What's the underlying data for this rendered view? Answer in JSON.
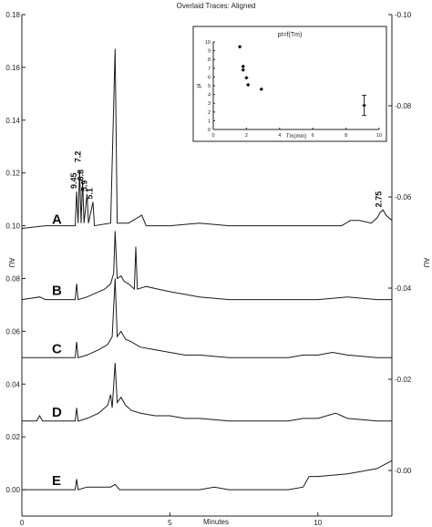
{
  "chart_data": {
    "type": "line",
    "title": "Overlaid Traces: Aligned",
    "xlabel": "Minutes",
    "ylabel": "AU",
    "xlim": [
      0,
      12.5
    ],
    "ylim": [
      -0.01,
      0.18
    ],
    "right_ylim": [
      -0.01,
      0.1
    ],
    "x_ticks": [
      0,
      5,
      10
    ],
    "left_y_ticks": [
      "0.00",
      "0.02",
      "0.04",
      "0.06",
      "0.08",
      "0.10",
      "0.12",
      "0.14",
      "0.16",
      "0.18"
    ],
    "right_y_ticks": [
      "0.00",
      "0.02",
      "0.04",
      "0.06",
      "0.08",
      "0.10"
    ],
    "series": [
      {
        "name": "A",
        "baseline": 0.099,
        "points": [
          [
            0,
            0.099
          ],
          [
            0.8,
            0.1
          ],
          [
            1.8,
            0.1
          ],
          [
            1.85,
            0.113
          ],
          [
            1.9,
            0.101
          ],
          [
            1.95,
            0.121
          ],
          [
            2.0,
            0.101
          ],
          [
            2.05,
            0.117
          ],
          [
            2.1,
            0.101
          ],
          [
            2.2,
            0.112
          ],
          [
            2.25,
            0.101
          ],
          [
            2.4,
            0.109
          ],
          [
            2.45,
            0.1
          ],
          [
            3.0,
            0.101
          ],
          [
            3.15,
            0.167
          ],
          [
            3.22,
            0.101
          ],
          [
            3.6,
            0.101
          ],
          [
            3.9,
            0.103
          ],
          [
            4.05,
            0.104
          ],
          [
            4.2,
            0.1
          ],
          [
            5.0,
            0.1
          ],
          [
            6.0,
            0.101
          ],
          [
            7.0,
            0.1
          ],
          [
            9.0,
            0.1
          ],
          [
            10.0,
            0.1
          ],
          [
            10.8,
            0.1
          ],
          [
            11.1,
            0.102
          ],
          [
            11.4,
            0.102
          ],
          [
            11.8,
            0.101
          ],
          [
            12.0,
            0.103
          ],
          [
            12.1,
            0.105
          ],
          [
            12.2,
            0.106
          ],
          [
            12.3,
            0.104
          ],
          [
            12.5,
            0.102
          ]
        ]
      },
      {
        "name": "B",
        "baseline": 0.072,
        "points": [
          [
            0,
            0.072
          ],
          [
            0.6,
            0.073
          ],
          [
            0.8,
            0.072
          ],
          [
            1.8,
            0.072
          ],
          [
            1.85,
            0.078
          ],
          [
            1.9,
            0.072
          ],
          [
            2.2,
            0.073
          ],
          [
            2.6,
            0.075
          ],
          [
            2.8,
            0.076
          ],
          [
            3.0,
            0.078
          ],
          [
            3.1,
            0.082
          ],
          [
            3.15,
            0.098
          ],
          [
            3.22,
            0.08
          ],
          [
            3.35,
            0.081
          ],
          [
            3.45,
            0.079
          ],
          [
            3.6,
            0.078
          ],
          [
            3.8,
            0.076
          ],
          [
            3.85,
            0.092
          ],
          [
            3.9,
            0.076
          ],
          [
            4.2,
            0.077
          ],
          [
            4.6,
            0.076
          ],
          [
            5.0,
            0.075
          ],
          [
            5.5,
            0.074
          ],
          [
            6.0,
            0.073
          ],
          [
            7.0,
            0.072
          ],
          [
            8.0,
            0.072
          ],
          [
            9.0,
            0.072
          ],
          [
            10.0,
            0.072
          ],
          [
            11.0,
            0.073
          ],
          [
            12.0,
            0.072
          ],
          [
            12.5,
            0.072
          ]
        ]
      },
      {
        "name": "C",
        "baseline": 0.05,
        "points": [
          [
            0,
            0.05
          ],
          [
            1.8,
            0.05
          ],
          [
            1.85,
            0.056
          ],
          [
            1.9,
            0.05
          ],
          [
            2.2,
            0.051
          ],
          [
            2.6,
            0.053
          ],
          [
            2.9,
            0.055
          ],
          [
            3.05,
            0.058
          ],
          [
            3.15,
            0.08
          ],
          [
            3.22,
            0.058
          ],
          [
            3.35,
            0.06
          ],
          [
            3.5,
            0.057
          ],
          [
            3.7,
            0.056
          ],
          [
            4.0,
            0.054
          ],
          [
            4.5,
            0.053
          ],
          [
            5.0,
            0.052
          ],
          [
            5.5,
            0.051
          ],
          [
            6.0,
            0.051
          ],
          [
            7.0,
            0.05
          ],
          [
            8.0,
            0.05
          ],
          [
            9.0,
            0.05
          ],
          [
            9.5,
            0.051
          ],
          [
            10.0,
            0.051
          ],
          [
            10.5,
            0.052
          ],
          [
            11.0,
            0.051
          ],
          [
            12.0,
            0.05
          ],
          [
            12.5,
            0.05
          ]
        ]
      },
      {
        "name": "D",
        "baseline": 0.026,
        "points": [
          [
            0,
            0.026
          ],
          [
            0.5,
            0.026
          ],
          [
            0.6,
            0.028
          ],
          [
            0.7,
            0.026
          ],
          [
            1.8,
            0.026
          ],
          [
            1.85,
            0.031
          ],
          [
            1.9,
            0.026
          ],
          [
            2.2,
            0.027
          ],
          [
            2.6,
            0.029
          ],
          [
            2.9,
            0.032
          ],
          [
            3.0,
            0.036
          ],
          [
            3.05,
            0.031
          ],
          [
            3.15,
            0.048
          ],
          [
            3.22,
            0.033
          ],
          [
            3.35,
            0.035
          ],
          [
            3.5,
            0.032
          ],
          [
            3.7,
            0.03
          ],
          [
            4.0,
            0.029
          ],
          [
            4.5,
            0.028
          ],
          [
            5.0,
            0.028
          ],
          [
            5.5,
            0.027
          ],
          [
            6.0,
            0.027
          ],
          [
            7.0,
            0.026
          ],
          [
            8.0,
            0.026
          ],
          [
            9.0,
            0.026
          ],
          [
            9.5,
            0.027
          ],
          [
            10.0,
            0.027
          ],
          [
            10.6,
            0.029
          ],
          [
            10.8,
            0.028
          ],
          [
            11.0,
            0.027
          ],
          [
            12.0,
            0.026
          ],
          [
            12.5,
            0.026
          ]
        ]
      },
      {
        "name": "E",
        "baseline": 0.0,
        "points": [
          [
            0,
            0.0
          ],
          [
            1.8,
            0.0
          ],
          [
            1.85,
            0.004
          ],
          [
            1.9,
            0.0
          ],
          [
            2.2,
            0.001
          ],
          [
            3.0,
            0.001
          ],
          [
            3.15,
            0.002
          ],
          [
            3.3,
            0.0
          ],
          [
            4.0,
            0.0
          ],
          [
            5.0,
            0.0
          ],
          [
            6.0,
            0.0
          ],
          [
            6.5,
            0.001
          ],
          [
            7.0,
            0.0
          ],
          [
            8.0,
            0.0
          ],
          [
            9.0,
            0.0
          ],
          [
            9.5,
            0.001
          ],
          [
            9.7,
            0.005
          ],
          [
            10.0,
            0.005
          ],
          [
            11.0,
            0.006
          ],
          [
            12.0,
            0.008
          ],
          [
            12.5,
            0.011
          ]
        ]
      }
    ],
    "peak_labels": [
      {
        "text": "9.45",
        "x": 1.85,
        "y": 0.114
      },
      {
        "text": "7.2",
        "x": 1.98,
        "y": 0.124
      },
      {
        "text": "6.8",
        "x": 2.08,
        "y": 0.117
      },
      {
        "text": "5.9",
        "x": 2.2,
        "y": 0.113
      },
      {
        "text": "5.1",
        "x": 2.38,
        "y": 0.11
      },
      {
        "text": "2.75",
        "x": 12.15,
        "y": 0.107
      }
    ],
    "inset": {
      "title": "pI=f(Tm)",
      "xlabel": "Tm(min)",
      "ylabel": "pI",
      "xlim": [
        0,
        10
      ],
      "ylim": [
        0,
        10
      ],
      "x_ticks": [
        0,
        2,
        4,
        6,
        8,
        10
      ],
      "y_ticks": [
        0,
        1,
        2,
        3,
        4,
        5,
        6,
        7,
        8,
        9,
        10
      ],
      "points": [
        [
          1.6,
          9.45
        ],
        [
          1.8,
          7.2
        ],
        [
          1.8,
          6.8
        ],
        [
          2.0,
          5.9
        ],
        [
          2.1,
          5.1
        ],
        [
          2.9,
          4.6
        ],
        [
          9.1,
          2.75
        ]
      ],
      "errorbar": {
        "x": 9.1,
        "y": 2.75,
        "low": 1.6,
        "high": 3.9
      }
    }
  }
}
